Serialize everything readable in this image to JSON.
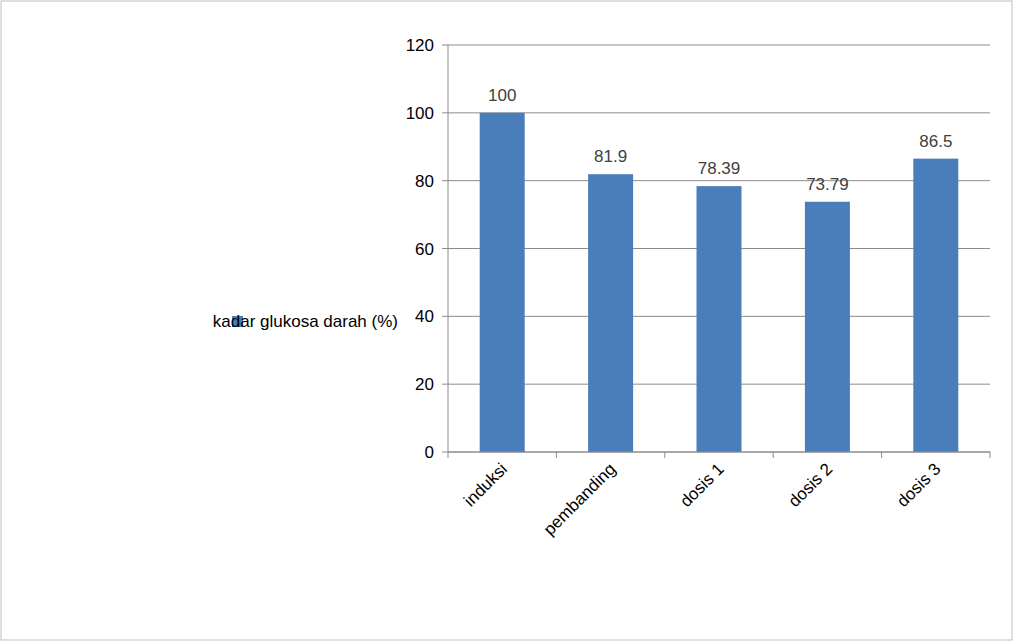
{
  "chart_data": {
    "type": "bar",
    "categories": [
      "induksi",
      "pembanding",
      "dosis 1",
      "dosis 2",
      "dosis 3"
    ],
    "series": [
      {
        "name": "kadar glukosa darah (%)",
        "color": "#4a7ebb",
        "values": [
          100,
          81.9,
          78.39,
          73.79,
          86.5
        ]
      }
    ],
    "ylim": [
      0,
      120
    ],
    "yticks": [
      0,
      20,
      40,
      60,
      80,
      100,
      120
    ],
    "grid": true,
    "legend": "left",
    "data_labels": true
  }
}
